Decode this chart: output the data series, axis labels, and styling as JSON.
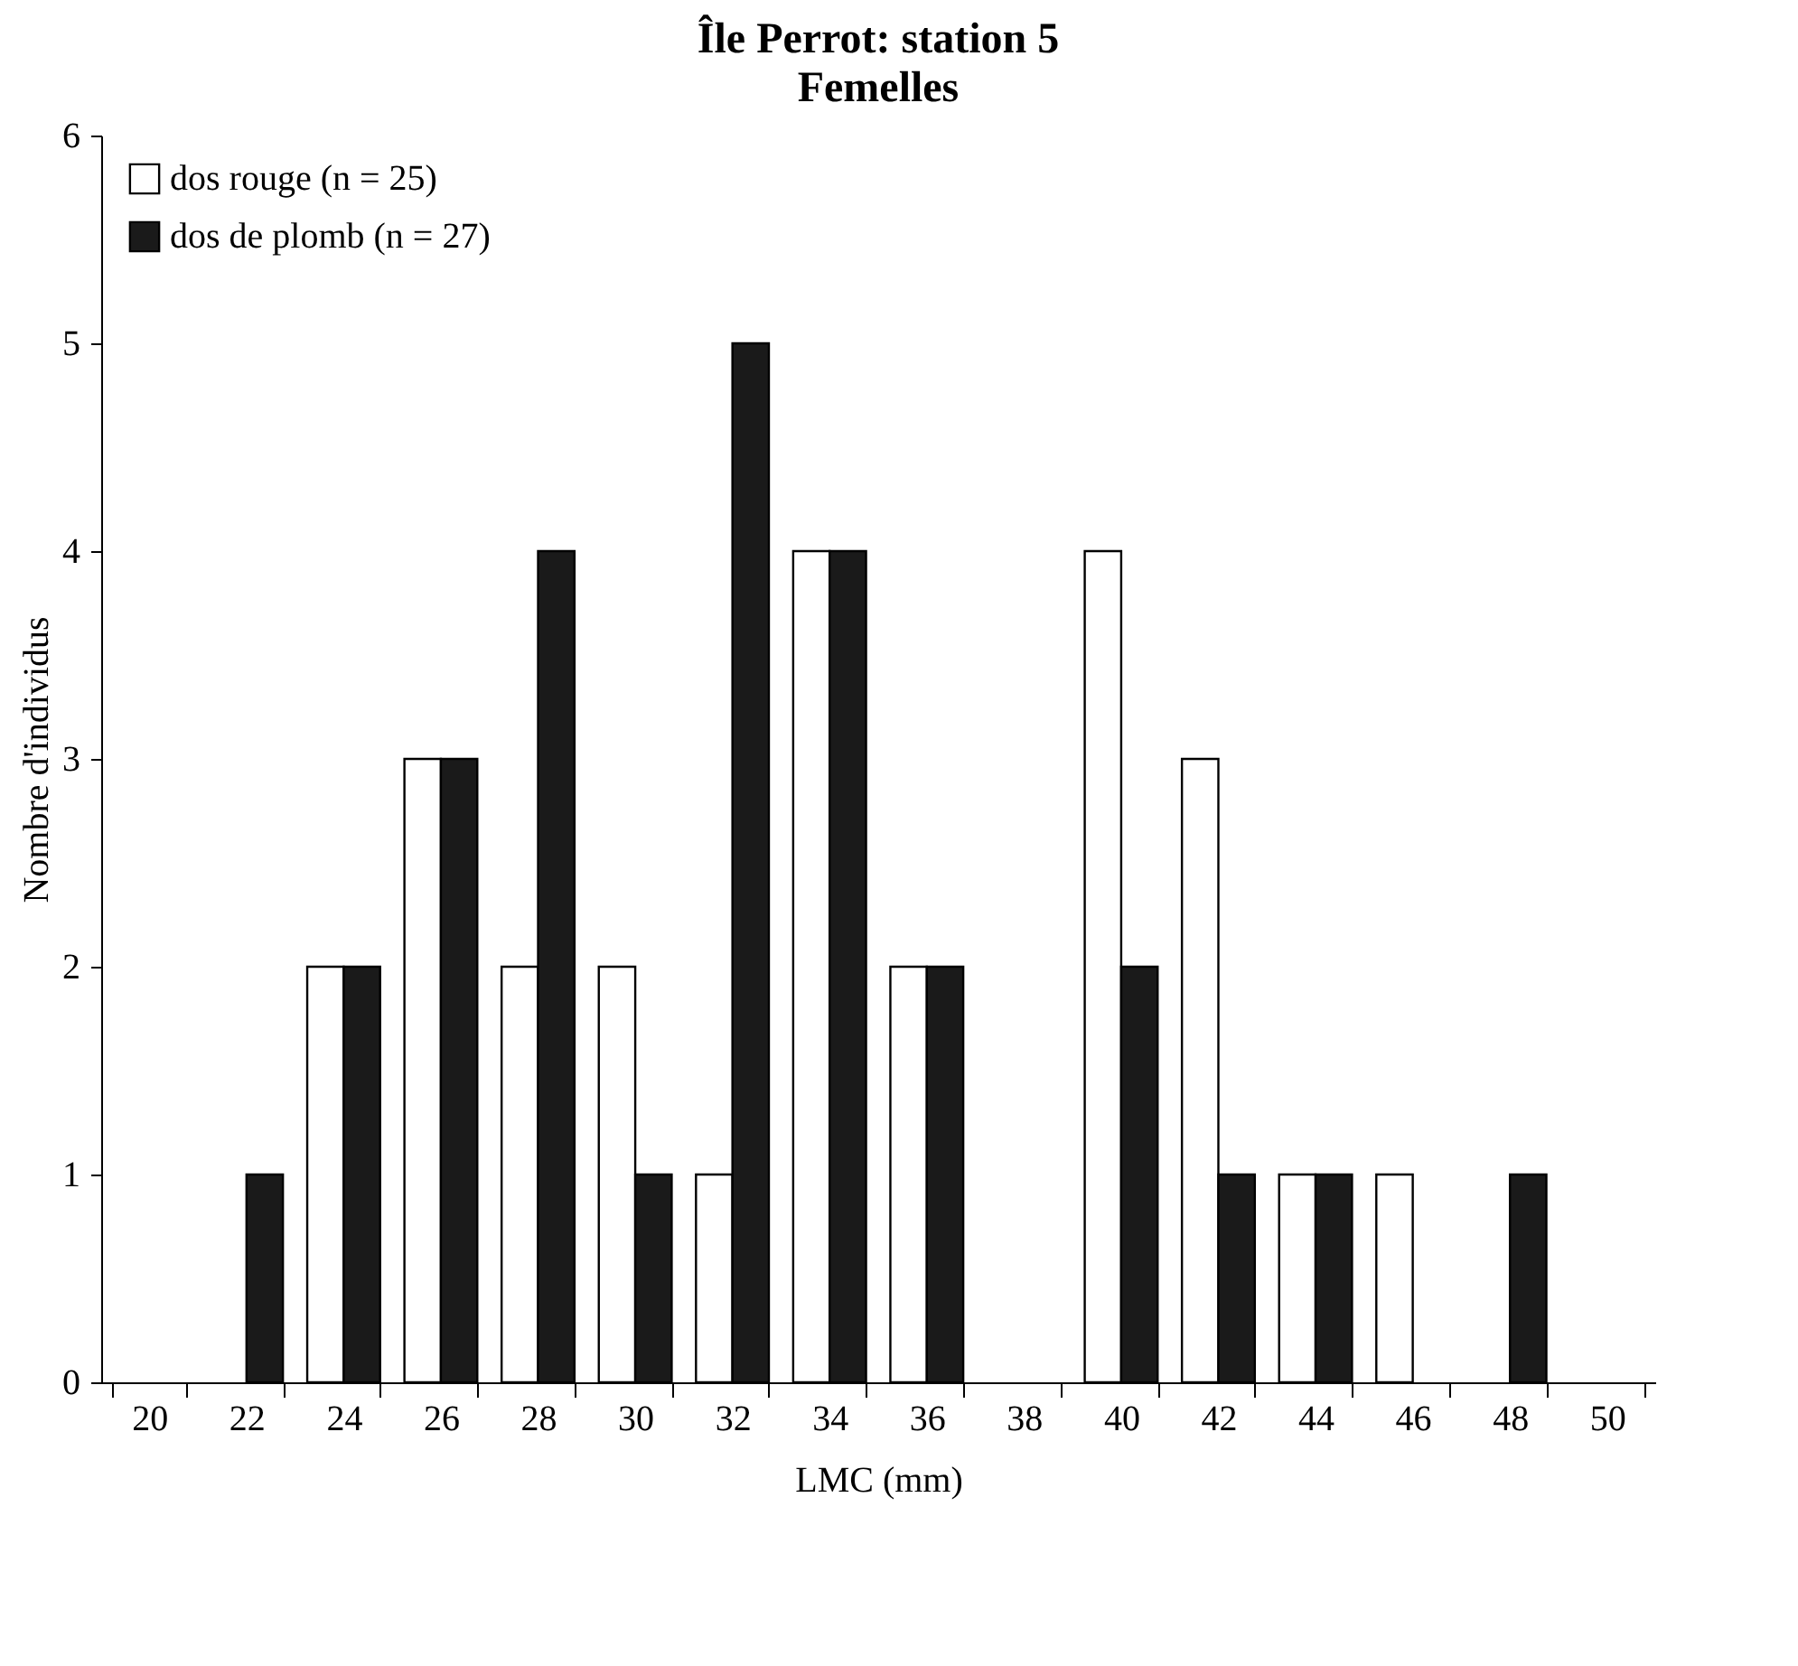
{
  "chart_data": {
    "type": "bar",
    "title": "Île Perrot: station 5",
    "subtitle": "Femelles",
    "xlabel": "LMC (mm)",
    "ylabel": "Nombre d'individus",
    "categories": [
      "20",
      "22",
      "24",
      "26",
      "28",
      "30",
      "32",
      "34",
      "36",
      "38",
      "40",
      "42",
      "44",
      "46",
      "48",
      "50"
    ],
    "series": [
      {
        "name": "dos rouge (n = 25)",
        "color": "#ffffff",
        "values": [
          0,
          0,
          2,
          3,
          2,
          2,
          1,
          4,
          2,
          0,
          4,
          3,
          1,
          1,
          0,
          0
        ]
      },
      {
        "name": "dos de plomb (n = 27)",
        "color": "#1a1a1a",
        "values": [
          0,
          1,
          2,
          3,
          4,
          1,
          5,
          4,
          2,
          0,
          2,
          1,
          1,
          0,
          1,
          0
        ]
      }
    ],
    "ylim": [
      0,
      6
    ],
    "yticks": [
      0,
      1,
      2,
      3,
      4,
      5,
      6
    ],
    "legend": "top left"
  }
}
